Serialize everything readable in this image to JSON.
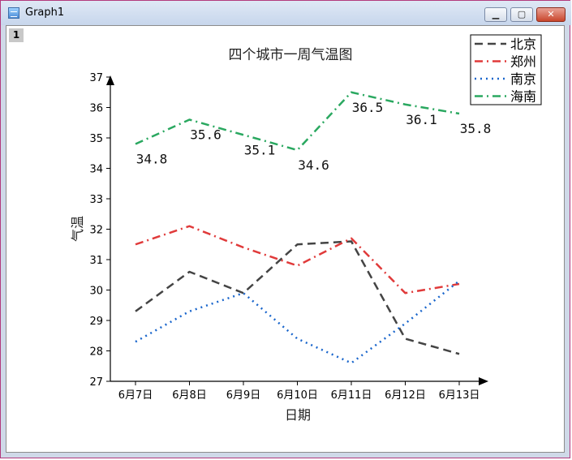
{
  "window": {
    "title": "Graph1",
    "layer_label": "1"
  },
  "chart_data": {
    "type": "line",
    "title": "四个城市一周气温图",
    "xlabel": "日期",
    "ylabel": "气温",
    "categories": [
      "6月7日",
      "6月8日",
      "6月9日",
      "6月10日",
      "6月11日",
      "6月12日",
      "6月13日"
    ],
    "ylim": [
      27,
      37
    ],
    "yticks": [
      27,
      28,
      29,
      30,
      31,
      32,
      33,
      34,
      35,
      36,
      37
    ],
    "legend_position": "top-right",
    "grid": false,
    "series": [
      {
        "name": "北京",
        "values": [
          29.3,
          30.6,
          29.9,
          31.5,
          31.6,
          28.4,
          27.9
        ],
        "color": "#444444",
        "dash": "dash"
      },
      {
        "name": "郑州",
        "values": [
          31.5,
          32.1,
          31.4,
          30.8,
          31.7,
          29.9,
          30.2
        ],
        "color": "#e03a3a",
        "dash": "dashdot"
      },
      {
        "name": "南京",
        "values": [
          28.3,
          29.3,
          29.9,
          28.4,
          27.6,
          28.9,
          30.3
        ],
        "color": "#1a66cc",
        "dash": "dot"
      },
      {
        "name": "海南",
        "values": [
          34.8,
          35.6,
          35.1,
          34.6,
          36.5,
          36.1,
          35.8
        ],
        "color": "#2aa860",
        "dash": "dashdot"
      }
    ],
    "data_labels": {
      "series": "海南",
      "labels": [
        "34.8",
        "35.6",
        "35.1",
        "34.6",
        "36.5",
        "36.1",
        "35.8"
      ]
    }
  }
}
